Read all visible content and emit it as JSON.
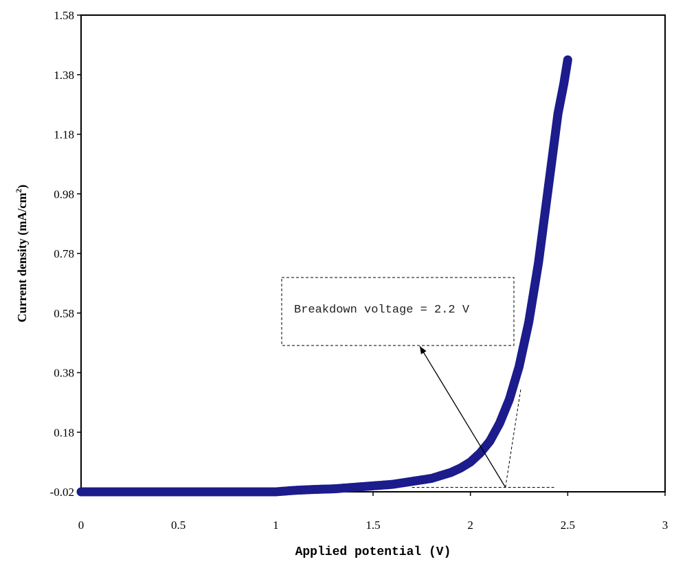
{
  "chart_data": {
    "type": "scatter",
    "title": "",
    "xlabel": "Applied potential (V)",
    "ylabel": "Current density (mA/cm²)",
    "ylabel_parts": {
      "main": "Current density (mA/cm",
      "sup": "2",
      "end": ")"
    },
    "xlim": [
      0,
      3
    ],
    "ylim": [
      -0.02,
      1.58
    ],
    "xticks": [
      0,
      0.5,
      1,
      1.5,
      2,
      2.5,
      3
    ],
    "xtick_labels": [
      "0",
      "0.5",
      "1",
      "1.5",
      "2",
      "2.5",
      "3"
    ],
    "yticks": [
      -0.02,
      0.18,
      0.38,
      0.58,
      0.78,
      0.98,
      1.18,
      1.38,
      1.58
    ],
    "ytick_labels": [
      "-0.02",
      "0.18",
      "0.38",
      "0.58",
      "0.78",
      "0.98",
      "1.18",
      "1.38",
      "1.58"
    ],
    "grid": false,
    "legend": "none",
    "marker_color": "#1c1c8c",
    "series": [
      {
        "x": [
          0.0,
          0.1,
          0.2,
          0.3,
          0.4,
          0.5,
          0.6,
          0.7,
          0.8,
          0.9,
          1.0,
          1.1,
          1.2,
          1.3,
          1.4,
          1.5,
          1.6,
          1.7,
          1.75,
          1.8,
          1.85,
          1.9,
          1.95,
          2.0,
          2.05,
          2.1,
          2.15,
          2.2,
          2.25,
          2.3,
          2.35,
          2.4,
          2.45,
          2.48,
          2.5
        ],
        "y": [
          -0.02,
          -0.02,
          -0.02,
          -0.02,
          -0.02,
          -0.02,
          -0.02,
          -0.02,
          -0.02,
          -0.02,
          -0.02,
          -0.015,
          -0.012,
          -0.01,
          -0.005,
          0.0,
          0.005,
          0.015,
          0.02,
          0.025,
          0.035,
          0.045,
          0.06,
          0.08,
          0.11,
          0.15,
          0.21,
          0.29,
          0.4,
          0.55,
          0.75,
          1.0,
          1.25,
          1.35,
          1.43
        ]
      }
    ],
    "annotations": [
      {
        "text": "Breakdown voltage = 2.2 V",
        "arrow_to_x": 2.18,
        "arrow_to_y": -0.005
      }
    ],
    "tangent_lines": [
      {
        "x": [
          2.18,
          2.26
        ],
        "y": [
          -0.005,
          0.33
        ]
      },
      {
        "x": [
          1.7,
          2.43
        ],
        "y": [
          -0.005,
          -0.005
        ]
      }
    ]
  }
}
